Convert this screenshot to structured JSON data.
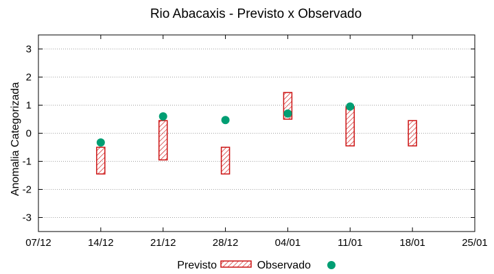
{
  "chart_data": {
    "type": "range-bar-scatter",
    "title": "Rio Abacaxis - Previsto x Observado",
    "xlabel": "",
    "ylabel": "Anomalia Categorizada",
    "x_ticks": [
      "07/12",
      "14/12",
      "21/12",
      "28/12",
      "04/01",
      "11/01",
      "18/01",
      "25/01"
    ],
    "y_ticks": [
      "-3",
      "-2",
      "-1",
      "0",
      "1",
      "2",
      "3"
    ],
    "ylim": [
      -3.5,
      3.5
    ],
    "grid": true,
    "legend_position": "bottom",
    "colors": {
      "previsto": "#cc1111",
      "observado": "#009e73",
      "grid": "#a0a0a0"
    },
    "series": [
      {
        "name": "Previsto",
        "kind": "range",
        "values": [
          {
            "x": "14/12",
            "low": -1.45,
            "high": -0.5
          },
          {
            "x": "21/12",
            "low": -0.95,
            "high": 0.45
          },
          {
            "x": "28/12",
            "low": -1.45,
            "high": -0.5
          },
          {
            "x": "04/01",
            "low": 0.5,
            "high": 1.45
          },
          {
            "x": "11/01",
            "low": -0.45,
            "high": 0.95
          },
          {
            "x": "18/01",
            "low": -0.45,
            "high": 0.45
          }
        ]
      },
      {
        "name": "Observado",
        "kind": "point",
        "values": [
          {
            "x": "14/12",
            "y": -0.33
          },
          {
            "x": "21/12",
            "y": 0.6
          },
          {
            "x": "28/12",
            "y": 0.47
          },
          {
            "x": "04/01",
            "y": 0.7
          },
          {
            "x": "11/01",
            "y": 0.95
          }
        ]
      }
    ]
  }
}
